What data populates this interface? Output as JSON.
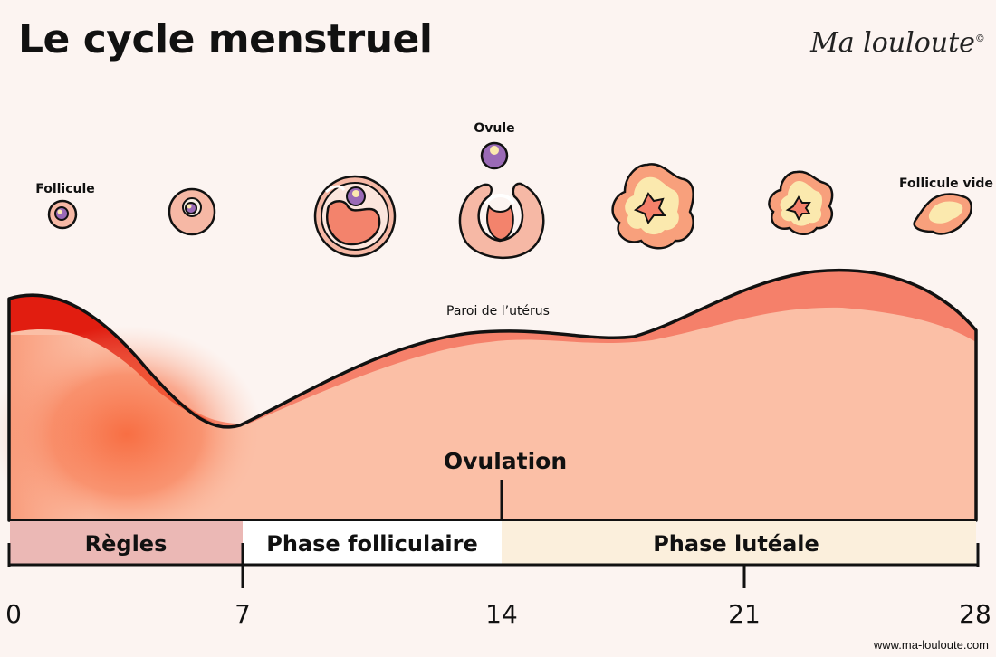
{
  "title": "Le cycle menstruel",
  "brand": {
    "name": "Ma louloute",
    "mark": "©"
  },
  "website": "www.ma-louloute.com",
  "colors": {
    "background": "#fcf4f1",
    "uterus_wall": "#fbbfa6",
    "uterus_lining": "#f5806a",
    "menstruation": "#e11d10",
    "period_bar": "#ebb8b5",
    "follicular_bar": "#ffffff",
    "luteal_bar": "#fbefdc",
    "follicle_outer": "#f6b8a5",
    "ovum": "#9a6ab6",
    "corpus_yellow": "#fbe9ae"
  },
  "follicle_labels": {
    "follicle": "Follicule",
    "ovum": "Ovule",
    "empty_follicle": "Follicule vide"
  },
  "uterus_label": "Paroi de l’utérus",
  "ovulation_label": "Ovulation",
  "phases": [
    {
      "label": "Règles",
      "start_day": 0,
      "end_day": 7
    },
    {
      "label": "Phase folliculaire",
      "start_day": 7,
      "end_day": 14
    },
    {
      "label": "Phase lutéale",
      "start_day": 14,
      "end_day": 28
    }
  ],
  "day_ticks": [
    "0",
    "7",
    "14",
    "21",
    "28"
  ]
}
